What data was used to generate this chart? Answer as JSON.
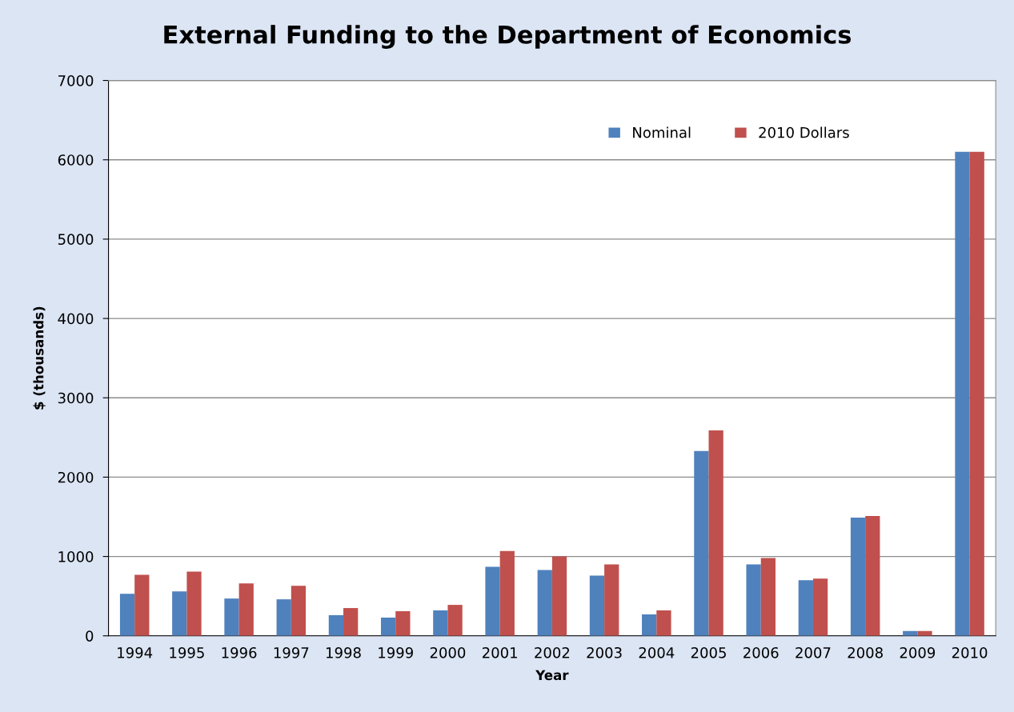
{
  "chart_data": {
    "type": "bar",
    "title": "External Funding to the Department of Economics",
    "xlabel": "Year",
    "ylabel": "$ (thousands)",
    "categories": [
      "1994",
      "1995",
      "1996",
      "1997",
      "1998",
      "1999",
      "2000",
      "2001",
      "2002",
      "2003",
      "2004",
      "2005",
      "2006",
      "2007",
      "2008",
      "2009",
      "2010"
    ],
    "series": [
      {
        "name": "Nominal",
        "color": "#4f81bd",
        "values": [
          530,
          560,
          470,
          460,
          260,
          230,
          320,
          870,
          830,
          760,
          270,
          2330,
          900,
          700,
          1490,
          60,
          6100
        ]
      },
      {
        "name": "2010 Dollars",
        "color": "#c0504d",
        "values": [
          770,
          810,
          660,
          630,
          350,
          310,
          390,
          1070,
          1000,
          900,
          320,
          2590,
          980,
          720,
          1510,
          60,
          6100
        ]
      }
    ],
    "ylim": [
      0,
      7000
    ],
    "yticks": [
      0,
      1000,
      2000,
      3000,
      4000,
      5000,
      6000,
      7000
    ],
    "grid": "y",
    "legend": "top right"
  }
}
